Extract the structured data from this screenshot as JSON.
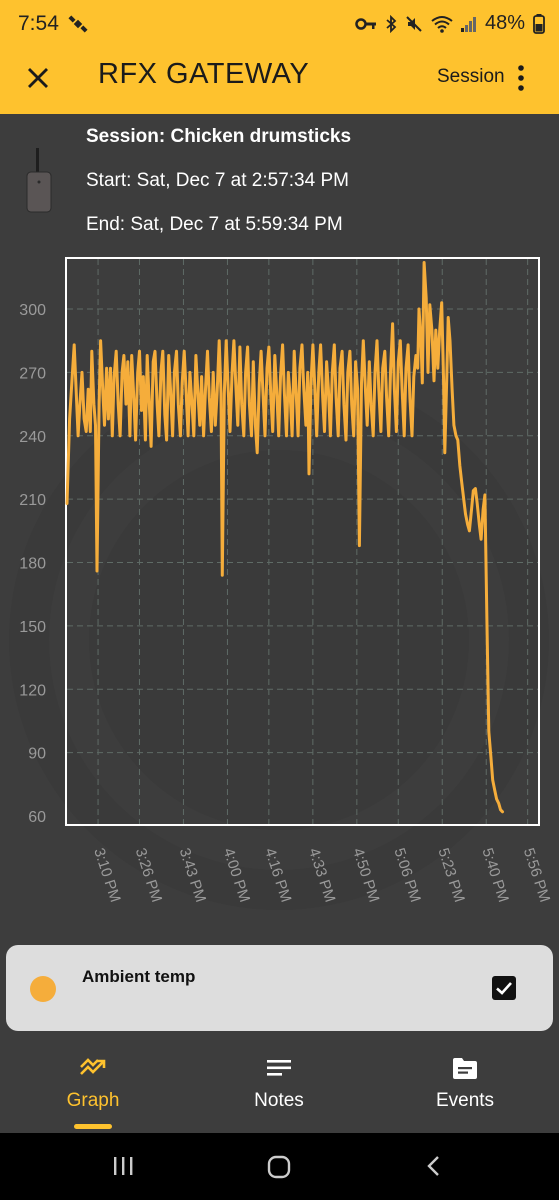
{
  "status_bar": {
    "time": "7:54",
    "battery": "48%"
  },
  "app_bar": {
    "title": "RFX GATEWAY",
    "menu_label": "Session"
  },
  "session": {
    "title": "Session: Chicken drumsticks",
    "start": "Start: Sat, Dec 7  at 2:57:34 PM",
    "end": "End: Sat, Dec 7  at 5:59:34 PM"
  },
  "chart_data": {
    "type": "line",
    "title": "",
    "xlabel": "",
    "ylabel": "",
    "ylim": [
      60,
      320
    ],
    "yticks": [
      60,
      90,
      120,
      150,
      180,
      210,
      240,
      270,
      300
    ],
    "x_tick_labels": [
      "3:10 PM",
      "3:26 PM",
      "3:43 PM",
      "4:00 PM",
      "4:16 PM",
      "4:33 PM",
      "4:50 PM",
      "5:06 PM",
      "5:23 PM",
      "5:40 PM",
      "5:56 PM"
    ],
    "x_tick_minutes": [
      190,
      206,
      223,
      240,
      256,
      273,
      290,
      306,
      323,
      340,
      356
    ],
    "xlim_minutes": [
      178,
      360
    ],
    "grid": true,
    "color": "#f5ad3b",
    "series": [
      {
        "name": "Ambient temp",
        "points": [
          [
            178.0,
            208
          ],
          [
            179.0,
            248
          ],
          [
            180.0,
            268
          ],
          [
            180.8,
            283
          ],
          [
            181.5,
            262
          ],
          [
            182.3,
            240
          ],
          [
            183.0,
            255
          ],
          [
            183.8,
            270
          ],
          [
            184.6,
            248
          ],
          [
            185.4,
            242
          ],
          [
            186.2,
            262
          ],
          [
            187.0,
            242
          ],
          [
            187.6,
            280
          ],
          [
            188.4,
            255
          ],
          [
            189.0,
            245
          ],
          [
            189.6,
            176
          ],
          [
            190.4,
            255
          ],
          [
            191.0,
            285
          ],
          [
            191.8,
            262
          ],
          [
            192.5,
            245
          ],
          [
            193.3,
            272
          ],
          [
            194.0,
            248
          ],
          [
            194.8,
            272
          ],
          [
            195.5,
            240
          ],
          [
            196.2,
            268
          ],
          [
            197.0,
            280
          ],
          [
            197.8,
            255
          ],
          [
            198.5,
            240
          ],
          [
            199.3,
            270
          ],
          [
            200.0,
            278
          ],
          [
            200.8,
            255
          ],
          [
            201.5,
            275
          ],
          [
            202.3,
            240
          ],
          [
            203.0,
            278
          ],
          [
            203.8,
            258
          ],
          [
            204.5,
            238
          ],
          [
            205.3,
            270
          ],
          [
            206.0,
            280
          ],
          [
            206.8,
            252
          ],
          [
            207.5,
            268
          ],
          [
            208.3,
            238
          ],
          [
            209.0,
            278
          ],
          [
            209.8,
            255
          ],
          [
            210.5,
            235
          ],
          [
            211.3,
            275
          ],
          [
            212.0,
            280
          ],
          [
            212.8,
            255
          ],
          [
            213.5,
            240
          ],
          [
            214.3,
            270
          ],
          [
            215.0,
            280
          ],
          [
            215.8,
            250
          ],
          [
            216.5,
            238
          ],
          [
            217.3,
            278
          ],
          [
            218.0,
            262
          ],
          [
            218.8,
            240
          ],
          [
            219.5,
            270
          ],
          [
            220.3,
            280
          ],
          [
            221.0,
            255
          ],
          [
            221.8,
            240
          ],
          [
            222.5,
            265
          ],
          [
            223.3,
            280
          ],
          [
            224.0,
            262
          ],
          [
            224.8,
            240
          ],
          [
            225.5,
            270
          ],
          [
            226.3,
            255
          ],
          [
            227.0,
            240
          ],
          [
            227.8,
            278
          ],
          [
            228.5,
            262
          ],
          [
            229.3,
            245
          ],
          [
            230.0,
            268
          ],
          [
            230.8,
            240
          ],
          [
            231.5,
            262
          ],
          [
            232.3,
            280
          ],
          [
            233.0,
            258
          ],
          [
            233.8,
            242
          ],
          [
            234.5,
            270
          ],
          [
            235.3,
            245
          ],
          [
            236.0,
            260
          ],
          [
            236.8,
            285
          ],
          [
            237.5,
            260
          ],
          [
            238.0,
            174
          ],
          [
            238.8,
            260
          ],
          [
            239.5,
            285
          ],
          [
            240.3,
            262
          ],
          [
            241.0,
            242
          ],
          [
            241.8,
            270
          ],
          [
            242.5,
            285
          ],
          [
            243.3,
            262
          ],
          [
            244.0,
            245
          ],
          [
            244.8,
            282
          ],
          [
            245.5,
            255
          ],
          [
            246.3,
            240
          ],
          [
            247.0,
            270
          ],
          [
            247.8,
            282
          ],
          [
            248.5,
            255
          ],
          [
            249.3,
            240
          ],
          [
            250.0,
            275
          ],
          [
            250.8,
            245
          ],
          [
            251.5,
            232
          ],
          [
            252.3,
            265
          ],
          [
            253.0,
            280
          ],
          [
            253.8,
            258
          ],
          [
            254.5,
            240
          ],
          [
            255.3,
            272
          ],
          [
            256.0,
            282
          ],
          [
            256.8,
            258
          ],
          [
            257.5,
            242
          ],
          [
            258.3,
            278
          ],
          [
            259.0,
            262
          ],
          [
            259.8,
            240
          ],
          [
            260.5,
            268
          ],
          [
            261.3,
            283
          ],
          [
            262.0,
            260
          ],
          [
            262.8,
            240
          ],
          [
            263.5,
            270
          ],
          [
            264.3,
            258
          ],
          [
            265.0,
            240
          ],
          [
            265.8,
            280
          ],
          [
            266.5,
            262
          ],
          [
            267.3,
            240
          ],
          [
            268.0,
            272
          ],
          [
            268.8,
            283
          ],
          [
            269.5,
            262
          ],
          [
            270.3,
            245
          ],
          [
            271.0,
            270
          ],
          [
            271.5,
            222
          ],
          [
            272.3,
            265
          ],
          [
            273.0,
            283
          ],
          [
            273.8,
            262
          ],
          [
            274.5,
            240
          ],
          [
            275.3,
            270
          ],
          [
            276.0,
            283
          ],
          [
            276.8,
            258
          ],
          [
            277.5,
            242
          ],
          [
            278.3,
            275
          ],
          [
            279.0,
            262
          ],
          [
            279.8,
            240
          ],
          [
            280.5,
            270
          ],
          [
            281.3,
            283
          ],
          [
            282.0,
            258
          ],
          [
            282.8,
            240
          ],
          [
            283.5,
            272
          ],
          [
            284.3,
            280
          ],
          [
            285.0,
            255
          ],
          [
            285.8,
            238
          ],
          [
            286.5,
            270
          ],
          [
            287.3,
            280
          ],
          [
            288.0,
            255
          ],
          [
            288.8,
            240
          ],
          [
            289.5,
            275
          ],
          [
            290.3,
            262
          ],
          [
            291.0,
            188
          ],
          [
            291.8,
            265
          ],
          [
            292.5,
            285
          ],
          [
            293.3,
            262
          ],
          [
            294.0,
            245
          ],
          [
            294.8,
            275
          ],
          [
            295.5,
            255
          ],
          [
            296.3,
            240
          ],
          [
            297.0,
            270
          ],
          [
            297.8,
            285
          ],
          [
            298.5,
            262
          ],
          [
            299.3,
            242
          ],
          [
            300.0,
            272
          ],
          [
            300.8,
            280
          ],
          [
            301.5,
            258
          ],
          [
            302.3,
            240
          ],
          [
            303.0,
            270
          ],
          [
            303.8,
            293
          ],
          [
            304.5,
            262
          ],
          [
            305.3,
            242
          ],
          [
            306.0,
            275
          ],
          [
            306.8,
            285
          ],
          [
            307.5,
            262
          ],
          [
            308.3,
            240
          ],
          [
            309.0,
            272
          ],
          [
            309.8,
            283
          ],
          [
            310.5,
            258
          ],
          [
            311.3,
            240
          ],
          [
            312.0,
            268
          ],
          [
            312.8,
            278
          ],
          [
            313.5,
            272
          ],
          [
            314.0,
            300
          ],
          [
            314.8,
            285
          ],
          [
            315.3,
            265
          ],
          [
            316.0,
            322
          ],
          [
            316.8,
            305
          ],
          [
            317.5,
            270
          ],
          [
            318.2,
            302
          ],
          [
            319.0,
            290
          ],
          [
            319.8,
            266
          ],
          [
            320.5,
            290
          ],
          [
            321.3,
            272
          ],
          [
            322.0,
            290
          ],
          [
            322.8,
            303
          ],
          [
            323.5,
            268
          ],
          [
            324.0,
            232
          ],
          [
            324.8,
            270
          ],
          [
            325.3,
            296
          ],
          [
            326.0,
            285
          ],
          [
            326.8,
            262
          ],
          [
            327.5,
            245
          ],
          [
            328.3,
            240
          ],
          [
            329.0,
            238
          ],
          [
            329.8,
            226
          ],
          [
            330.5,
            218
          ],
          [
            331.3,
            210
          ],
          [
            332.0,
            203
          ],
          [
            332.8,
            198
          ],
          [
            333.5,
            195
          ],
          [
            334.3,
            205
          ],
          [
            335.0,
            214
          ],
          [
            335.8,
            215
          ],
          [
            336.5,
            208
          ],
          [
            337.3,
            198
          ],
          [
            338.0,
            191
          ],
          [
            338.8,
            205
          ],
          [
            339.5,
            212
          ],
          [
            340.3,
            150
          ],
          [
            341.0,
            100
          ],
          [
            341.8,
            88
          ],
          [
            342.5,
            77
          ],
          [
            343.3,
            72
          ],
          [
            344.0,
            68
          ],
          [
            344.8,
            66
          ],
          [
            345.5,
            63
          ],
          [
            346.3,
            62
          ]
        ]
      }
    ]
  },
  "legend": {
    "label": "Ambient temp",
    "checked": true,
    "color": "#f5ad3b"
  },
  "bottom_nav": {
    "items": [
      {
        "label": "Graph",
        "icon": "trending-icon",
        "active": true
      },
      {
        "label": "Notes",
        "icon": "notes-icon",
        "active": false
      },
      {
        "label": "Events",
        "icon": "events-icon",
        "active": false
      }
    ]
  },
  "colors": {
    "accent": "#fec22e",
    "background": "#3d3d3d",
    "line": "#f5ad3b"
  }
}
